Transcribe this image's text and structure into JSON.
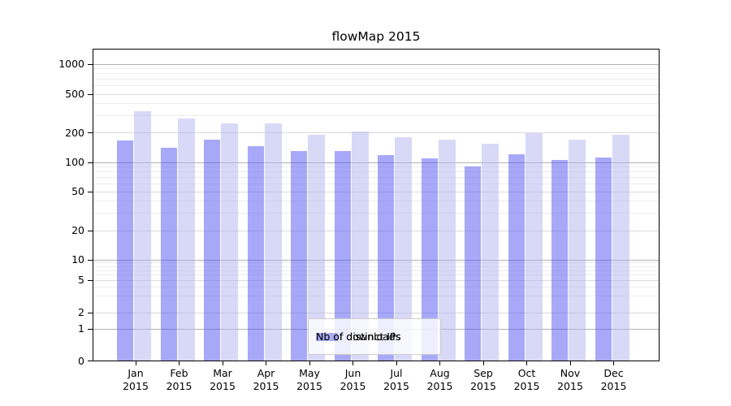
{
  "chart_data": {
    "type": "bar",
    "title": "flowMap 2015",
    "categories": [
      "Jan",
      "Feb",
      "Mar",
      "Apr",
      "May",
      "Jun",
      "Jul",
      "Aug",
      "Sep",
      "Oct",
      "Nov",
      "Dec"
    ],
    "year_label": "2015",
    "series": [
      {
        "name": "Nb of distinct IPs",
        "color": "#a6a6f8",
        "render_rgba": "rgba(81,81,241,0.5)",
        "values": [
          168,
          140,
          170,
          145,
          130,
          130,
          118,
          110,
          90,
          122,
          106,
          112
        ]
      },
      {
        "name": "Nb of downloads",
        "color": "#d9d9f8",
        "render_rgba": "rgba(178,178,240,0.5)",
        "values": [
          330,
          280,
          248,
          248,
          190,
          206,
          180,
          170,
          155,
          198,
          170,
          191
        ]
      }
    ],
    "xlabel": "",
    "ylabel": "",
    "yscale": "log-like (symlog, linear below 1)",
    "ytick_labels": [
      "1000",
      "500",
      "200",
      "100",
      "50",
      "20",
      "10",
      "5",
      "2",
      "1",
      "0"
    ],
    "ytick_values": [
      1000,
      500,
      200,
      100,
      50,
      20,
      10,
      5,
      2,
      1,
      0
    ],
    "ylim": [
      0,
      1400
    ],
    "grid": "horizontal, major gray lines at powers of 10, faint minor log lines",
    "legend_position": "inside lower-center-right",
    "legend_entries": [
      "Nb of distinct IPs",
      "Nb of downloads"
    ]
  },
  "colors": {
    "background": "#ffffff",
    "axis": "#000000",
    "grid_major": "#b0b0b0",
    "grid_sub": "#dadada",
    "grid_minor": "#ececec",
    "bar_distinct_ips": "#a6a6f8",
    "bar_downloads": "#d9d9f8"
  }
}
